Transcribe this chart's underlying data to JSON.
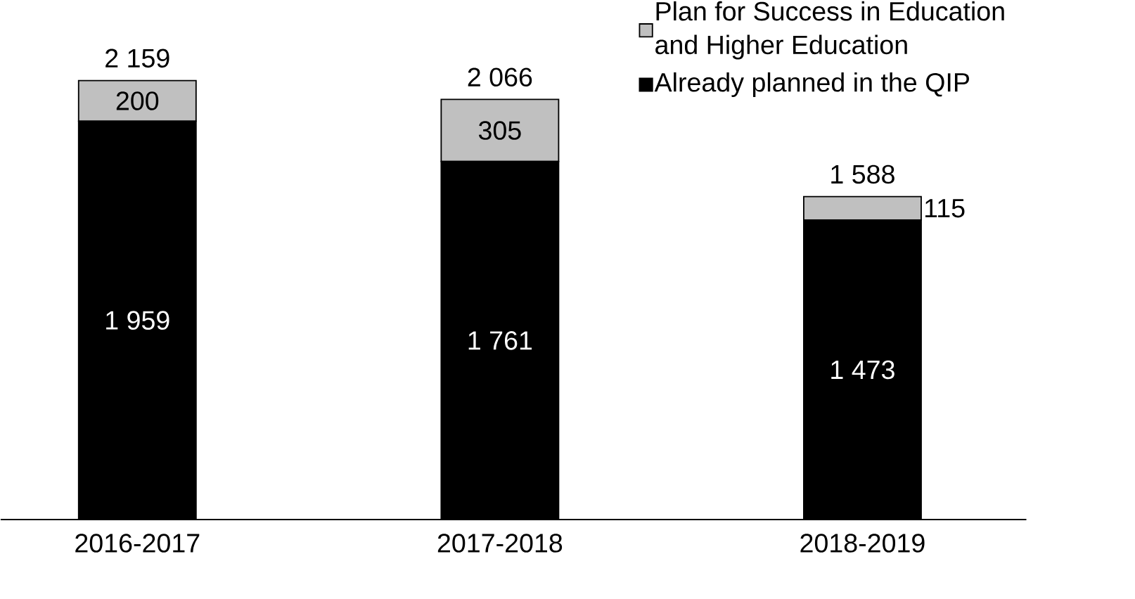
{
  "chart_data": {
    "type": "bar",
    "stacked": true,
    "categories": [
      "2016-2017",
      "2017-2018",
      "2018-2019"
    ],
    "series": [
      {
        "name": "Already planned in the QIP",
        "color": "#000000",
        "values": [
          1959,
          1761,
          1473
        ],
        "value_labels": [
          "1 959",
          "1 761",
          "1 473"
        ]
      },
      {
        "name": "Plan for Success in Education and Higher Education",
        "color": "#c0c0c0",
        "values": [
          200,
          305,
          115
        ],
        "value_labels": [
          "200",
          "305",
          "115"
        ]
      }
    ],
    "totals": [
      "2 159",
      "2 066",
      "1 588"
    ],
    "legend": "top right"
  }
}
